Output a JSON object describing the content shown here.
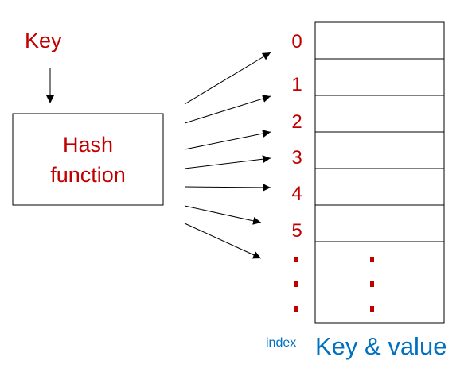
{
  "key_label": "Key",
  "hash_function": {
    "line1": "Hash",
    "line2": "function"
  },
  "indices": [
    "0",
    "1",
    "2",
    "3",
    "4",
    "5"
  ],
  "index_label": "index",
  "table_label": "Key & value",
  "colors": {
    "red": "#c00000",
    "blue": "#0070c0",
    "stroke": "#000000"
  }
}
